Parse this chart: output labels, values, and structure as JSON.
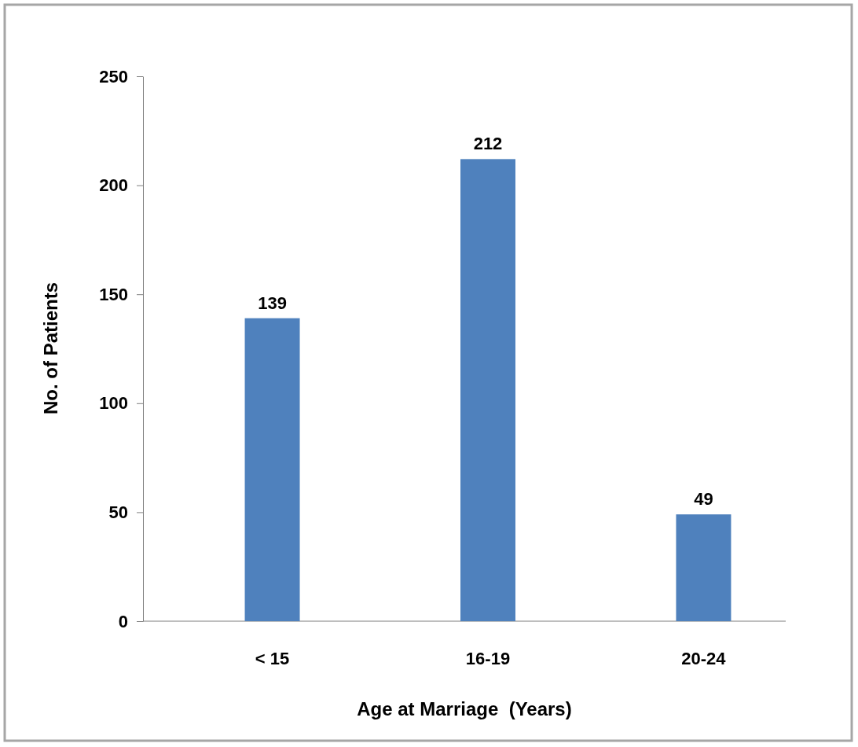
{
  "chart_data": {
    "type": "bar",
    "xlabel": "Age at Marriage  (Years)",
    "ylabel": "No. of Patients",
    "categories": [
      "< 15",
      "16-19",
      "20-24"
    ],
    "values": [
      139,
      212,
      49
    ],
    "color": "#4f81bd",
    "ylim": [
      0,
      250
    ],
    "yticks": [
      0,
      50,
      100,
      150,
      200,
      250
    ],
    "grid": false,
    "data_labels": true
  }
}
